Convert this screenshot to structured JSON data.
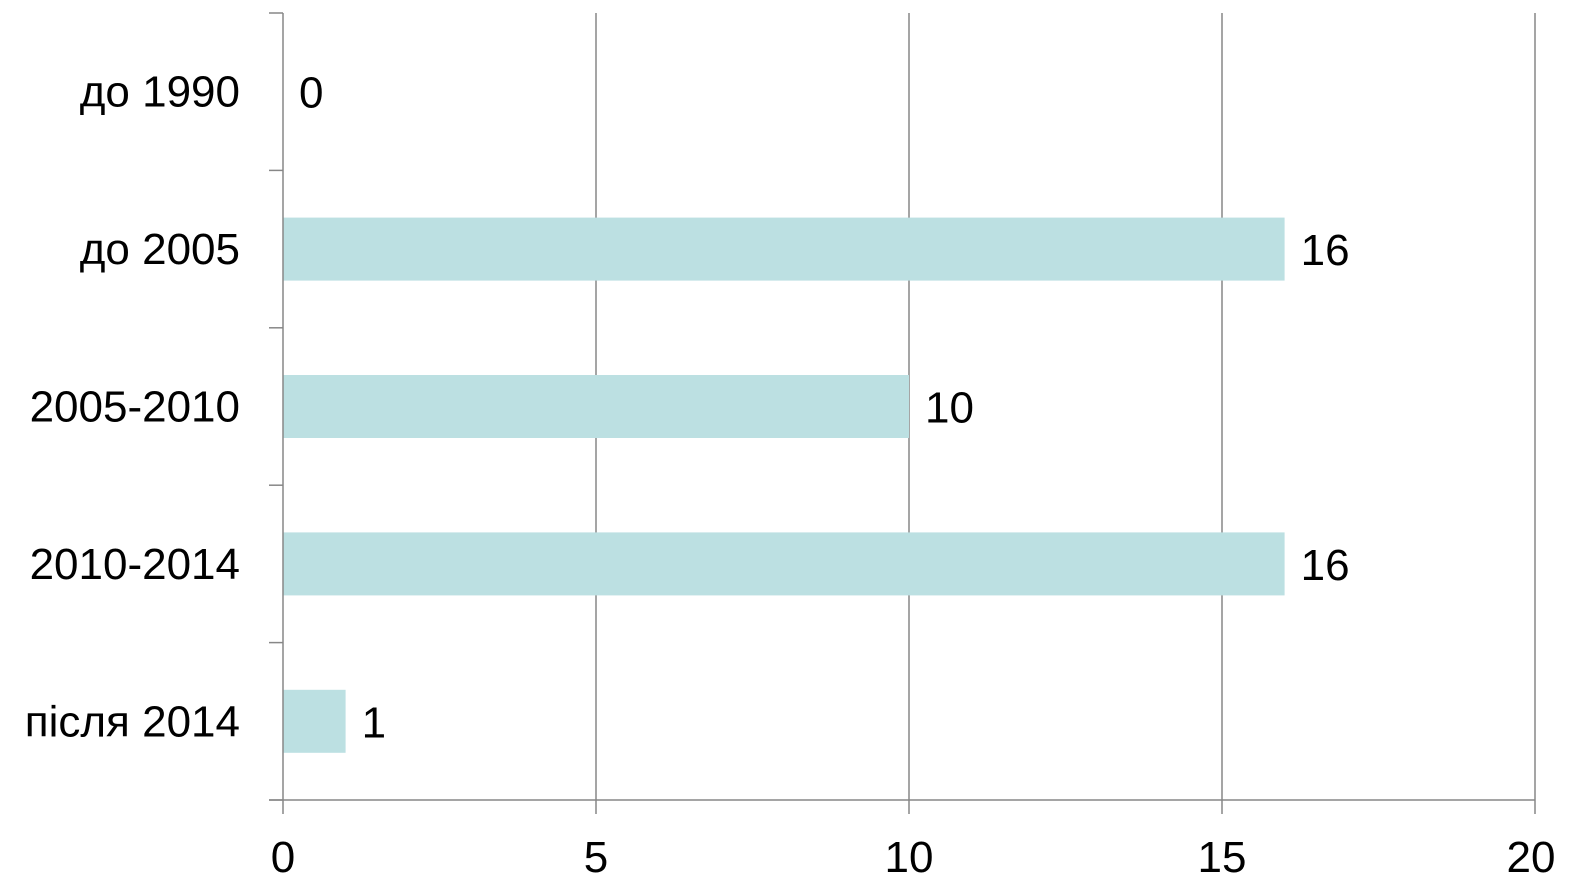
{
  "chart_data": {
    "type": "bar",
    "orientation": "horizontal",
    "categories": [
      "до 1990",
      "до 2005",
      "2005-2010",
      "2010-2014",
      "після 2014"
    ],
    "values": [
      0,
      16,
      10,
      16,
      1
    ],
    "data_labels": [
      "0",
      "16",
      "10",
      "16",
      "1"
    ],
    "x_ticks": [
      "0",
      "5",
      "10",
      "15",
      "20"
    ],
    "xlim": [
      0,
      20
    ],
    "title": "",
    "xlabel": "",
    "ylabel": "",
    "grid": "vertical",
    "legend": "none",
    "bar_color": "#bce0e2",
    "grid_color": "#878787",
    "axis_color": "#878787"
  }
}
